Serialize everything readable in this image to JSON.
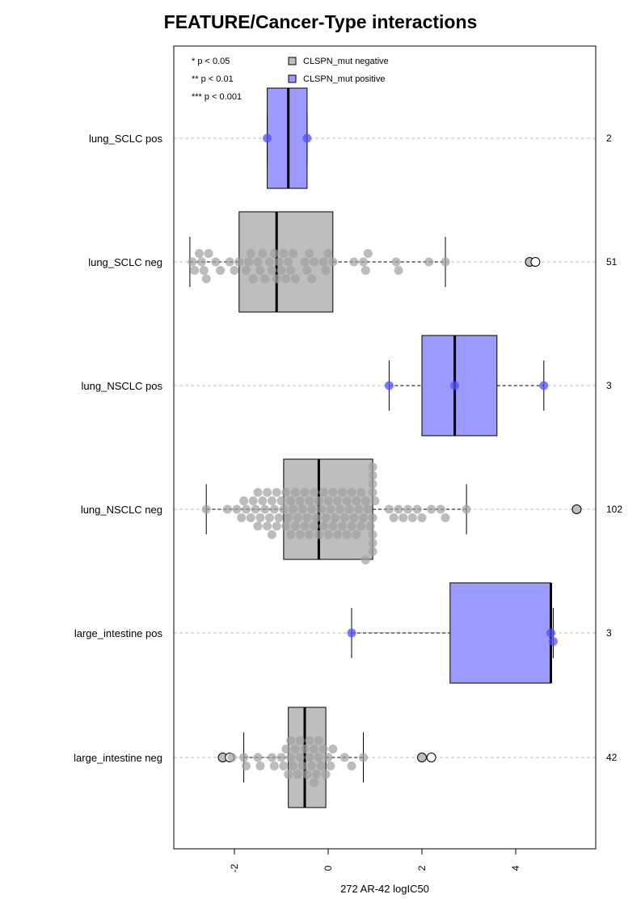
{
  "chart_data": {
    "type": "box",
    "title": "FEATURE/Cancer-Type interactions",
    "xlabel": "272 AR-42 logIC50",
    "xlim": [
      -3.3,
      5.7
    ],
    "xticks": [
      -2,
      0,
      2,
      4
    ],
    "xtick_labels": [
      "-2",
      "0",
      "2",
      "4"
    ],
    "grid": "dashed horizontal",
    "significance_legend": [
      "* p < 0.05",
      "** p < 0.01",
      "*** p < 0.001"
    ],
    "legend": [
      {
        "label": "CLSPN_mut negative",
        "color": "#bebebe"
      },
      {
        "label": "CLSPN_mut positive",
        "color": "#9a9aff"
      }
    ],
    "groups": [
      {
        "label": "lung_SCLC pos",
        "count": "2",
        "status": "positive",
        "whisker_low": -1.3,
        "q1": -1.3,
        "median": -0.85,
        "q3": -0.45,
        "whisker_high": -0.45,
        "points": [
          {
            "x": -1.3
          },
          {
            "x": -0.45
          }
        ]
      },
      {
        "label": "lung_SCLC neg",
        "count": "51",
        "status": "negative",
        "whisker_low": -2.95,
        "q1": -1.9,
        "median": -1.1,
        "q3": 0.1,
        "whisker_high": 2.5,
        "points": [
          {
            "x": -2.9
          },
          {
            "x": -2.85
          },
          {
            "x": -2.75
          },
          {
            "x": -2.7
          },
          {
            "x": -2.65
          },
          {
            "x": -2.6
          },
          {
            "x": -2.55
          },
          {
            "x": -2.4
          },
          {
            "x": -2.3
          },
          {
            "x": -2.1
          },
          {
            "x": -2.0
          },
          {
            "x": -1.9
          },
          {
            "x": -1.75
          },
          {
            "x": -1.7
          },
          {
            "x": -1.65
          },
          {
            "x": -1.6
          },
          {
            "x": -1.5
          },
          {
            "x": -1.45
          },
          {
            "x": -1.4
          },
          {
            "x": -1.35
          },
          {
            "x": -1.25
          },
          {
            "x": -1.2
          },
          {
            "x": -1.15
          },
          {
            "x": -1.1
          },
          {
            "x": -1.05
          },
          {
            "x": -1.0
          },
          {
            "x": -0.95
          },
          {
            "x": -0.9
          },
          {
            "x": -0.85
          },
          {
            "x": -0.8
          },
          {
            "x": -0.75
          },
          {
            "x": -0.7
          },
          {
            "x": -0.5
          },
          {
            "x": -0.45
          },
          {
            "x": -0.4
          },
          {
            "x": -0.35
          },
          {
            "x": -0.3
          },
          {
            "x": -0.1
          },
          {
            "x": -0.05
          },
          {
            "x": 0.0
          },
          {
            "x": 0.1
          },
          {
            "x": 0.55
          },
          {
            "x": 0.75
          },
          {
            "x": 0.8
          },
          {
            "x": 0.85
          },
          {
            "x": 1.45
          },
          {
            "x": 1.5
          },
          {
            "x": 2.15
          },
          {
            "x": 2.5
          },
          {
            "x": 4.3,
            "outlier": true
          },
          {
            "x": 4.42,
            "outlier": true,
            "open": true
          }
        ]
      },
      {
        "label": "lung_NSCLC pos",
        "count": "3",
        "status": "positive",
        "whisker_low": 1.3,
        "q1": 2.0,
        "median": 2.7,
        "q3": 3.6,
        "whisker_high": 4.6,
        "points": [
          {
            "x": 1.3
          },
          {
            "x": 2.7
          },
          {
            "x": 4.6
          }
        ]
      },
      {
        "label": "lung_NSCLC neg",
        "count": "102",
        "status": "negative",
        "whisker_low": -2.6,
        "q1": -0.95,
        "median": -0.2,
        "q3": 0.95,
        "whisker_high": 2.95,
        "points": [
          {
            "x": -2.6
          },
          {
            "x": -2.15
          },
          {
            "x": -1.95
          },
          {
            "x": -1.85
          },
          {
            "x": -1.8
          },
          {
            "x": -1.75
          },
          {
            "x": -1.65
          },
          {
            "x": -1.6
          },
          {
            "x": -1.55
          },
          {
            "x": -1.5
          },
          {
            "x": -1.45
          },
          {
            "x": -1.4
          },
          {
            "x": -1.35
          },
          {
            "x": -1.3
          },
          {
            "x": -1.25
          },
          {
            "x": -1.2
          },
          {
            "x": -1.15
          },
          {
            "x": -1.1
          },
          {
            "x": -1.05
          },
          {
            "x": -1.0
          },
          {
            "x": -0.95
          },
          {
            "x": -0.9
          },
          {
            "x": -0.85
          },
          {
            "x": -0.8
          },
          {
            "x": -0.75
          },
          {
            "x": -0.7
          },
          {
            "x": -0.65
          },
          {
            "x": -0.6
          },
          {
            "x": -0.55
          },
          {
            "x": -0.5
          },
          {
            "x": -0.45
          },
          {
            "x": -0.4
          },
          {
            "x": -0.35
          },
          {
            "x": -0.3
          },
          {
            "x": -0.25
          },
          {
            "x": -0.2
          },
          {
            "x": -0.15
          },
          {
            "x": -0.1
          },
          {
            "x": -0.05
          },
          {
            "x": 0.0
          },
          {
            "x": 0.05
          },
          {
            "x": 0.1
          },
          {
            "x": 0.15
          },
          {
            "x": 0.2
          },
          {
            "x": 0.25
          },
          {
            "x": 0.3
          },
          {
            "x": 0.35
          },
          {
            "x": 0.4
          },
          {
            "x": 0.45
          },
          {
            "x": 0.5
          },
          {
            "x": 0.55
          },
          {
            "x": 0.6
          },
          {
            "x": 0.65
          },
          {
            "x": 0.7
          },
          {
            "x": 0.75
          },
          {
            "x": 0.8
          },
          {
            "x": 0.85
          },
          {
            "x": 0.9
          },
          {
            "x": 0.95
          },
          {
            "x": 0.95
          },
          {
            "x": 0.95
          },
          {
            "x": 0.95
          },
          {
            "x": 0.95
          },
          {
            "x": 0.95
          },
          {
            "x": 0.95
          },
          {
            "x": 0.95
          },
          {
            "x": 1.0
          },
          {
            "x": 1.3
          },
          {
            "x": 1.4
          },
          {
            "x": 1.5
          },
          {
            "x": 1.6
          },
          {
            "x": 1.7
          },
          {
            "x": 1.8
          },
          {
            "x": 1.9
          },
          {
            "x": 2.0
          },
          {
            "x": 2.2
          },
          {
            "x": 2.4
          },
          {
            "x": 2.5
          },
          {
            "x": 2.95
          },
          {
            "x": -1.5
          },
          {
            "x": -1.3
          },
          {
            "x": -1.1
          },
          {
            "x": -0.9
          },
          {
            "x": -0.7
          },
          {
            "x": -0.5
          },
          {
            "x": -0.3
          },
          {
            "x": -0.1
          },
          {
            "x": 0.1
          },
          {
            "x": 0.3
          },
          {
            "x": 0.5
          },
          {
            "x": 0.7
          },
          {
            "x": -1.2
          },
          {
            "x": -0.8
          },
          {
            "x": -0.4
          },
          {
            "x": 0.0
          },
          {
            "x": 0.4
          },
          {
            "x": 0.8
          },
          {
            "x": -0.6
          },
          {
            "x": -0.2
          },
          {
            "x": 0.2
          },
          {
            "x": 0.6
          },
          {
            "x": 5.3,
            "outlier": true
          }
        ]
      },
      {
        "label": "large_intestine pos",
        "count": "3",
        "status": "positive",
        "whisker_low": 0.5,
        "q1": 2.6,
        "median": 4.75,
        "q3": 4.75,
        "whisker_high": 4.8,
        "points": [
          {
            "x": 0.5
          },
          {
            "x": 4.75
          },
          {
            "x": 4.8
          }
        ]
      },
      {
        "label": "large_intestine neg",
        "count": "42",
        "status": "negative",
        "whisker_low": -1.8,
        "q1": -0.85,
        "median": -0.5,
        "q3": -0.05,
        "whisker_high": 0.75,
        "points": [
          {
            "x": -2.25,
            "outlier": true
          },
          {
            "x": -2.1,
            "outlier": true,
            "open": true
          },
          {
            "x": -2.05
          },
          {
            "x": -1.8
          },
          {
            "x": -1.75
          },
          {
            "x": -1.5
          },
          {
            "x": -1.45
          },
          {
            "x": -1.2
          },
          {
            "x": -1.15
          },
          {
            "x": -1.0
          },
          {
            "x": -0.95
          },
          {
            "x": -0.9
          },
          {
            "x": -0.85
          },
          {
            "x": -0.8
          },
          {
            "x": -0.75
          },
          {
            "x": -0.7
          },
          {
            "x": -0.65
          },
          {
            "x": -0.6
          },
          {
            "x": -0.55
          },
          {
            "x": -0.5
          },
          {
            "x": -0.45
          },
          {
            "x": -0.4
          },
          {
            "x": -0.35
          },
          {
            "x": -0.3
          },
          {
            "x": -0.25
          },
          {
            "x": -0.2
          },
          {
            "x": -0.15
          },
          {
            "x": -0.1
          },
          {
            "x": -0.05
          },
          {
            "x": 0.0
          },
          {
            "x": 0.05
          },
          {
            "x": 0.1
          },
          {
            "x": 0.35
          },
          {
            "x": 0.5
          },
          {
            "x": 0.75
          },
          {
            "x": -0.6
          },
          {
            "x": -0.4
          },
          {
            "x": -0.2
          },
          {
            "x": -0.8
          },
          {
            "x": -0.3
          },
          {
            "x": 2.0,
            "outlier": true
          },
          {
            "x": 2.2,
            "outlier": true,
            "open": true
          }
        ]
      }
    ]
  }
}
